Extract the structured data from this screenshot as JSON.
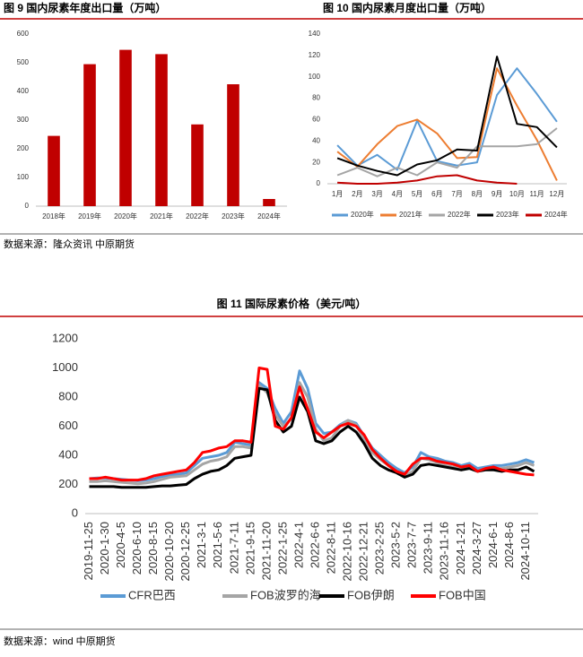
{
  "chart_data": [
    {
      "type": "bar",
      "title": "图 9  国内尿素年度出口量（万吨）",
      "categories": [
        "2018年",
        "2019年",
        "2020年",
        "2021年",
        "2022年",
        "2023年",
        "2024年"
      ],
      "values": [
        245,
        495,
        545,
        530,
        285,
        425,
        25
      ],
      "color": "#c00000",
      "ylim": [
        0,
        600
      ],
      "yticks": [
        0,
        100,
        200,
        300,
        400,
        500,
        600
      ],
      "grid": false
    },
    {
      "type": "line",
      "title": "图 10  国内尿素月度出口量（万吨）",
      "categories": [
        "1月",
        "2月",
        "3月",
        "4月",
        "5月",
        "6月",
        "7月",
        "8月",
        "9月",
        "10月",
        "11月",
        "12月"
      ],
      "ylim": [
        0,
        140
      ],
      "yticks": [
        0,
        20,
        40,
        60,
        80,
        100,
        120,
        140
      ],
      "grid": false,
      "series": [
        {
          "name": "2020年",
          "color": "#5b9bd5",
          "values": [
            36,
            17,
            27,
            13,
            59,
            21,
            17,
            20,
            83,
            108,
            84,
            58
          ]
        },
        {
          "name": "2021年",
          "color": "#ed7d31",
          "values": [
            30,
            16,
            37,
            54,
            60,
            47,
            24,
            25,
            108,
            73,
            41,
            3
          ]
        },
        {
          "name": "2022年",
          "color": "#a5a5a5",
          "values": [
            8,
            15,
            7,
            15,
            8,
            20,
            15,
            35,
            35,
            35,
            37,
            52
          ]
        },
        {
          "name": "2023年",
          "color": "#000000",
          "values": [
            24,
            17,
            12,
            8,
            18,
            22,
            32,
            31,
            119,
            56,
            53,
            34
          ]
        },
        {
          "name": "2024年",
          "color": "#c00000",
          "values": [
            1,
            0,
            0,
            1,
            3,
            7,
            8,
            3,
            1,
            0,
            null,
            null
          ]
        }
      ]
    },
    {
      "type": "line",
      "title": "图 11  国际尿素价格（美元/吨）",
      "categories": [
        "2019-11-25",
        null,
        "2020-1-30",
        null,
        "2020-4-5",
        null,
        "2020-6-10",
        null,
        "2020-8-15",
        null,
        "2020-10-20",
        null,
        "2020-12-25",
        null,
        "2021-3-1",
        null,
        "2021-5-6",
        null,
        "2021-7-11",
        null,
        "2021-9-15",
        null,
        "2021-11-20",
        null,
        "2022-1-25",
        null,
        "2022-4-1",
        null,
        "2022-6-6",
        null,
        "2022-8-11",
        null,
        "2022-10-16",
        null,
        "2022-12-21",
        null,
        "2023-2-25",
        null,
        "2023-5-2",
        null,
        "2023-7-7",
        null,
        "2023-9-11",
        null,
        "2023-11-16",
        null,
        "2024-1-21",
        null,
        "2024-3-27",
        null,
        "2024-6-1",
        null,
        "2024-8-6",
        null,
        "2024-10-11",
        null
      ],
      "ylim": [
        0,
        1200
      ],
      "yticks": [
        0,
        200,
        400,
        600,
        800,
        1000,
        1200
      ],
      "grid": false,
      "series": [
        {
          "name": "CFR巴西",
          "color": "#5b9bd5",
          "values": [
            240,
            245,
            245,
            240,
            235,
            230,
            225,
            230,
            240,
            255,
            265,
            270,
            280,
            330,
            380,
            390,
            400,
            420,
            490,
            480,
            470,
            900,
            860,
            720,
            620,
            700,
            980,
            860,
            620,
            550,
            560,
            610,
            640,
            620,
            530,
            450,
            400,
            350,
            310,
            280,
            320,
            420,
            390,
            380,
            360,
            350,
            330,
            345,
            310,
            320,
            330,
            330,
            340,
            350,
            370,
            350
          ]
        },
        {
          "name": "FOB波罗的海",
          "color": "#a5a5a5",
          "values": [
            220,
            220,
            225,
            220,
            215,
            210,
            205,
            210,
            220,
            235,
            250,
            255,
            260,
            300,
            340,
            360,
            370,
            390,
            460,
            460,
            450,
            880,
            830,
            680,
            600,
            650,
            900,
            800,
            580,
            500,
            520,
            600,
            640,
            610,
            500,
            420,
            370,
            330,
            290,
            260,
            290,
            380,
            370,
            350,
            330,
            320,
            300,
            320,
            290,
            310,
            310,
            310,
            320,
            330,
            350,
            330
          ]
        },
        {
          "name": "FOB伊朗",
          "color": "#000000",
          "values": [
            185,
            185,
            185,
            185,
            180,
            180,
            180,
            180,
            185,
            190,
            190,
            195,
            200,
            240,
            270,
            290,
            300,
            330,
            380,
            390,
            400,
            860,
            850,
            640,
            560,
            600,
            800,
            700,
            500,
            480,
            500,
            560,
            600,
            560,
            480,
            380,
            330,
            300,
            280,
            250,
            270,
            330,
            340,
            330,
            320,
            310,
            300,
            310,
            290,
            300,
            300,
            290,
            300,
            300,
            320,
            290
          ]
        },
        {
          "name": "FOB中国",
          "color": "#ff0000",
          "values": [
            240,
            240,
            250,
            240,
            230,
            230,
            230,
            240,
            260,
            270,
            280,
            290,
            300,
            350,
            420,
            430,
            450,
            460,
            500,
            500,
            490,
            1000,
            990,
            600,
            580,
            660,
            870,
            720,
            560,
            520,
            560,
            600,
            620,
            600,
            540,
            440,
            380,
            330,
            290,
            270,
            340,
            380,
            380,
            360,
            350,
            340,
            320,
            330,
            290,
            310,
            320,
            300,
            290,
            280,
            270,
            265
          ]
        }
      ]
    }
  ],
  "sources": [
    "数据来源：隆众资讯 中原期货",
    "数据来源：wind 中原期货"
  ]
}
